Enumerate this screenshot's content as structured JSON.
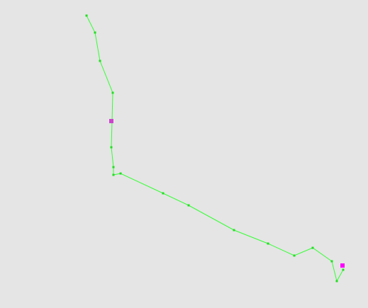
{
  "colors": {
    "background": "#e5e5e5",
    "path": "#33ff33",
    "vertex": "#22dd22",
    "marker": "#ff00ff",
    "marker_alt": "#cc44cc"
  },
  "path_vertices": 20,
  "markers": 2
}
